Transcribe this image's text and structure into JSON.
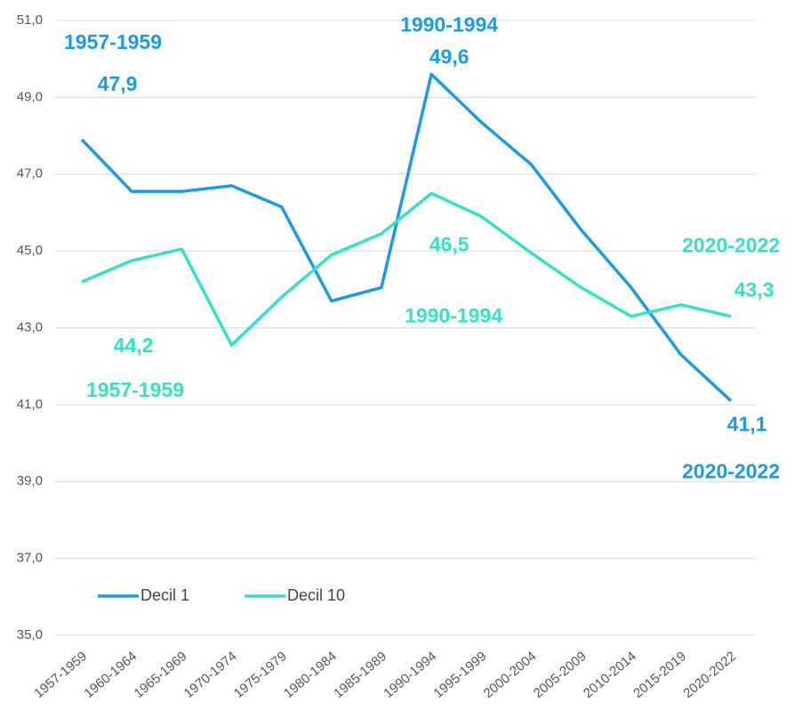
{
  "chart_data": {
    "type": "line",
    "categories": [
      "1957-1959",
      "1960-1964",
      "1965-1969",
      "1970-1974",
      "1975-1979",
      "1980-1984",
      "1985-1989",
      "1990-1994",
      "1995-1999",
      "2000-2004",
      "2005-2009",
      "2010-2014",
      "2015-2019",
      "2020-2022"
    ],
    "series": [
      {
        "name": "Decil 1",
        "color": "#1a9be8",
        "values": [
          47.9,
          46.55,
          46.55,
          46.7,
          46.15,
          43.7,
          44.05,
          49.6,
          48.35,
          47.25,
          45.55,
          44.05,
          42.3,
          41.1
        ],
        "value_labels": [
          "47,9",
          null,
          null,
          null,
          null,
          null,
          null,
          "49,6",
          null,
          null,
          null,
          null,
          null,
          "41,1"
        ]
      },
      {
        "name": "Decil 10",
        "color": "#33e3c6",
        "values": [
          44.2,
          44.75,
          45.05,
          42.55,
          43.8,
          44.9,
          45.45,
          46.5,
          45.9,
          44.95,
          44.05,
          43.3,
          43.6,
          43.3
        ],
        "value_labels": [
          "44,2",
          null,
          null,
          null,
          null,
          null,
          null,
          "46,5",
          null,
          null,
          null,
          null,
          null,
          "43,3"
        ]
      }
    ],
    "ylim": [
      35,
      51
    ],
    "yticks": [
      {
        "value": 35,
        "label": "35,0"
      },
      {
        "value": 37,
        "label": "37,0"
      },
      {
        "value": 39,
        "label": "39,0"
      },
      {
        "value": 41,
        "label": "41,0"
      },
      {
        "value": 43,
        "label": "43,0"
      },
      {
        "value": 45,
        "label": "45,0"
      },
      {
        "value": 47,
        "label": "47,0"
      },
      {
        "value": 49,
        "label": "49,0"
      },
      {
        "value": 51,
        "label": "51,0"
      }
    ],
    "grid": true,
    "legend": "lower left"
  }
}
